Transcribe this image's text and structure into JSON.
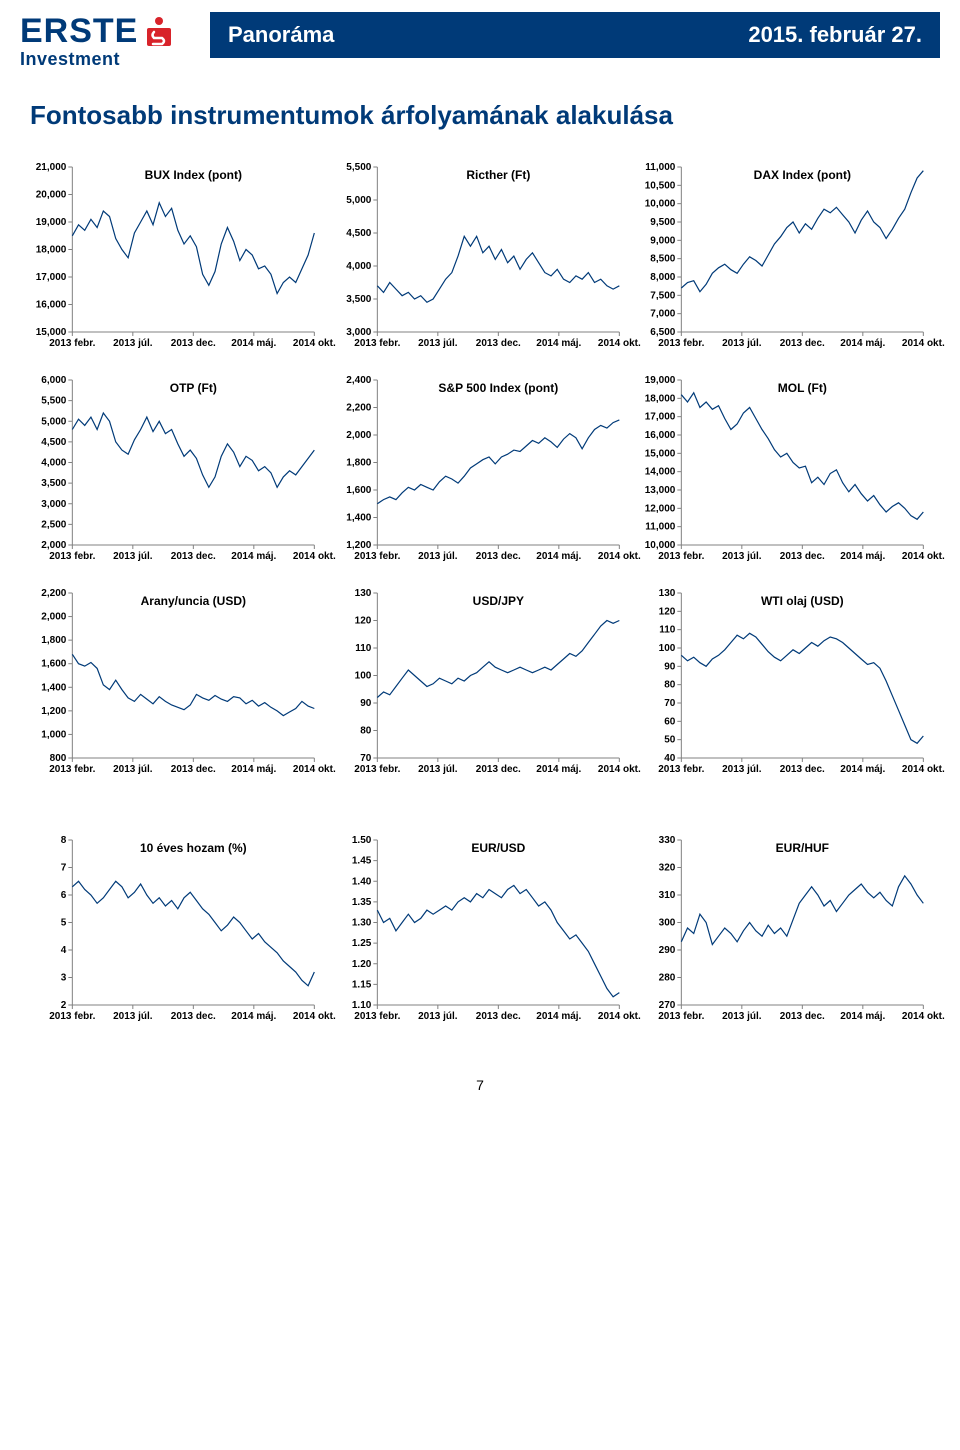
{
  "header": {
    "logo_text": "ERSTE",
    "logo_sub": "Investment",
    "title_left": "Panoráma",
    "title_right": "2015. február 27."
  },
  "section_title": "Fontosabb instrumentumok árfolyamának alakulása",
  "page_number": "7",
  "xlabels": [
    "2013 febr.",
    "2013 júl.",
    "2013 dec.",
    "2014 máj.",
    "2014 okt."
  ],
  "style": {
    "line_color": "#003a78",
    "grid_color": "#808080",
    "axis_color": "#000000",
    "line_width": 1.2,
    "title_fontsize": 12,
    "label_fontsize": 10,
    "tick_len": 4
  },
  "charts": [
    {
      "title": "BUX Index (pont)",
      "ymin": 15000,
      "ymax": 21000,
      "ystep": 1000,
      "yfmt": "comma",
      "data": [
        18500,
        18900,
        18700,
        19100,
        18800,
        19400,
        19200,
        18400,
        18000,
        17700,
        18600,
        19000,
        19400,
        18900,
        19700,
        19200,
        19500,
        18700,
        18200,
        18500,
        18100,
        17100,
        16700,
        17200,
        18200,
        18800,
        18300,
        17600,
        18000,
        17800,
        17300,
        17400,
        17100,
        16400,
        16800,
        17000,
        16800,
        17300,
        17800,
        18600
      ]
    },
    {
      "title": "Ricther (Ft)",
      "ymin": 3000,
      "ymax": 5500,
      "ystep": 500,
      "yfmt": "comma",
      "data": [
        3700,
        3600,
        3750,
        3650,
        3550,
        3600,
        3500,
        3550,
        3450,
        3500,
        3650,
        3800,
        3900,
        4150,
        4450,
        4300,
        4450,
        4200,
        4300,
        4100,
        4250,
        4050,
        4150,
        3950,
        4100,
        4200,
        4050,
        3900,
        3850,
        3950,
        3800,
        3750,
        3850,
        3800,
        3900,
        3750,
        3800,
        3700,
        3650,
        3700
      ]
    },
    {
      "title": "DAX Index (pont)",
      "ymin": 6500,
      "ymax": 11000,
      "ystep": 500,
      "yfmt": "comma",
      "data": [
        7700,
        7850,
        7900,
        7600,
        7800,
        8100,
        8250,
        8350,
        8200,
        8100,
        8350,
        8550,
        8450,
        8300,
        8600,
        8900,
        9100,
        9350,
        9500,
        9200,
        9450,
        9300,
        9600,
        9850,
        9750,
        9900,
        9700,
        9500,
        9200,
        9550,
        9800,
        9500,
        9350,
        9050,
        9300,
        9600,
        9850,
        10300,
        10700,
        10900
      ]
    },
    {
      "title": "OTP (Ft)",
      "ymin": 2000,
      "ymax": 6000,
      "ystep": 500,
      "yfmt": "comma",
      "data": [
        4800,
        5050,
        4900,
        5100,
        4800,
        5200,
        5000,
        4500,
        4300,
        4200,
        4550,
        4800,
        5100,
        4750,
        5000,
        4700,
        4800,
        4450,
        4150,
        4300,
        4100,
        3700,
        3400,
        3650,
        4150,
        4450,
        4250,
        3900,
        4150,
        4050,
        3800,
        3900,
        3750,
        3400,
        3650,
        3800,
        3700,
        3900,
        4100,
        4300
      ]
    },
    {
      "title": "S&P 500 Index (pont)",
      "ymin": 1200,
      "ymax": 2400,
      "ystep": 200,
      "yfmt": "comma",
      "data": [
        1500,
        1530,
        1550,
        1530,
        1580,
        1620,
        1600,
        1640,
        1620,
        1600,
        1660,
        1700,
        1680,
        1650,
        1700,
        1760,
        1790,
        1820,
        1840,
        1790,
        1840,
        1860,
        1890,
        1880,
        1920,
        1960,
        1940,
        1980,
        1950,
        1910,
        1970,
        2010,
        1980,
        1900,
        1980,
        2040,
        2070,
        2050,
        2090,
        2110
      ]
    },
    {
      "title": "MOL (Ft)",
      "ymin": 10000,
      "ymax": 19000,
      "ystep": 1000,
      "yfmt": "comma",
      "data": [
        18200,
        17800,
        18300,
        17500,
        17800,
        17400,
        17600,
        16900,
        16300,
        16600,
        17200,
        17500,
        16900,
        16300,
        15800,
        15200,
        14800,
        15000,
        14500,
        14200,
        14300,
        13400,
        13700,
        13300,
        13900,
        14100,
        13400,
        12900,
        13300,
        12800,
        12400,
        12700,
        12200,
        11800,
        12100,
        12300,
        12000,
        11600,
        11400,
        11800
      ]
    },
    {
      "title": "Arany/uncia (USD)",
      "ymin": 800,
      "ymax": 2200,
      "ystep": 200,
      "yfmt": "comma",
      "data": [
        1680,
        1600,
        1580,
        1610,
        1560,
        1420,
        1380,
        1460,
        1380,
        1310,
        1280,
        1340,
        1300,
        1260,
        1320,
        1280,
        1250,
        1230,
        1210,
        1250,
        1340,
        1310,
        1290,
        1330,
        1300,
        1280,
        1320,
        1310,
        1260,
        1290,
        1240,
        1270,
        1230,
        1200,
        1160,
        1190,
        1220,
        1280,
        1240,
        1220
      ]
    },
    {
      "title": "USD/JPY",
      "ymin": 70,
      "ymax": 130,
      "ystep": 10,
      "yfmt": "plain",
      "data": [
        92,
        94,
        93,
        96,
        99,
        102,
        100,
        98,
        96,
        97,
        99,
        98,
        97,
        99,
        98,
        100,
        101,
        103,
        105,
        103,
        102,
        101,
        102,
        103,
        102,
        101,
        102,
        103,
        102,
        104,
        106,
        108,
        107,
        109,
        112,
        115,
        118,
        120,
        119,
        120
      ]
    },
    {
      "title": "WTI olaj (USD)",
      "ymin": 40,
      "ymax": 130,
      "ystep": 10,
      "yfmt": "plain",
      "data": [
        96,
        93,
        95,
        92,
        90,
        94,
        96,
        99,
        103,
        107,
        105,
        108,
        106,
        102,
        98,
        95,
        93,
        96,
        99,
        97,
        100,
        103,
        101,
        104,
        106,
        105,
        103,
        100,
        97,
        94,
        91,
        92,
        89,
        82,
        74,
        66,
        58,
        50,
        48,
        52
      ]
    },
    {
      "title": "10 éves hozam (%)",
      "ymin": 2,
      "ymax": 8,
      "ystep": 1,
      "yfmt": "plain",
      "data": [
        6.3,
        6.5,
        6.2,
        6.0,
        5.7,
        5.9,
        6.2,
        6.5,
        6.3,
        5.9,
        6.1,
        6.4,
        6.0,
        5.7,
        5.9,
        5.6,
        5.8,
        5.5,
        5.9,
        6.1,
        5.8,
        5.5,
        5.3,
        5.0,
        4.7,
        4.9,
        5.2,
        5.0,
        4.7,
        4.4,
        4.6,
        4.3,
        4.1,
        3.9,
        3.6,
        3.4,
        3.2,
        2.9,
        2.7,
        3.2
      ]
    },
    {
      "title": "EUR/USD",
      "ymin": 1.1,
      "ymax": 1.5,
      "ystep": 0.05,
      "yfmt": "dec2",
      "data": [
        1.33,
        1.3,
        1.31,
        1.28,
        1.3,
        1.32,
        1.3,
        1.31,
        1.33,
        1.32,
        1.33,
        1.34,
        1.33,
        1.35,
        1.36,
        1.35,
        1.37,
        1.36,
        1.38,
        1.37,
        1.36,
        1.38,
        1.39,
        1.37,
        1.38,
        1.36,
        1.34,
        1.35,
        1.33,
        1.3,
        1.28,
        1.26,
        1.27,
        1.25,
        1.23,
        1.2,
        1.17,
        1.14,
        1.12,
        1.13
      ]
    },
    {
      "title": "EUR/HUF",
      "ymin": 270,
      "ymax": 330,
      "ystep": 10,
      "yfmt": "plain",
      "data": [
        293,
        298,
        296,
        303,
        300,
        292,
        295,
        298,
        296,
        293,
        297,
        300,
        297,
        295,
        299,
        296,
        298,
        295,
        301,
        307,
        310,
        313,
        310,
        306,
        308,
        304,
        307,
        310,
        312,
        314,
        311,
        309,
        311,
        308,
        306,
        313,
        317,
        314,
        310,
        307
      ]
    }
  ]
}
